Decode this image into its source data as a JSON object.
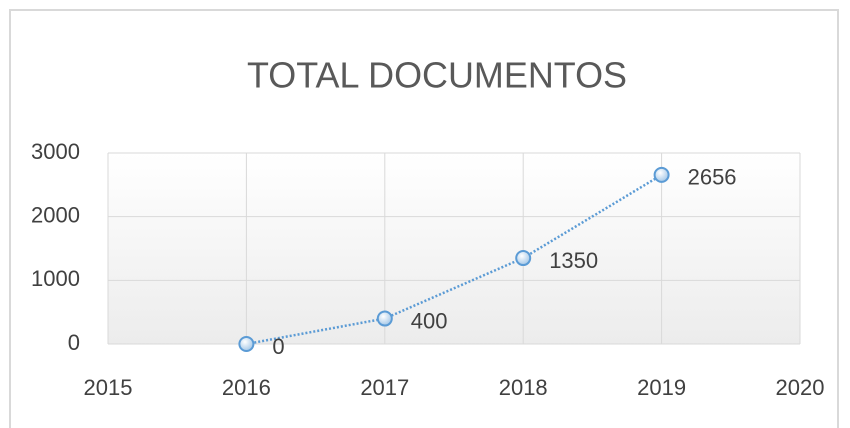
{
  "chart_data": {
    "type": "line",
    "title": "TOTAL DOCUMENTOS",
    "x": [
      2016,
      2017,
      2018,
      2019
    ],
    "series": [
      {
        "color": "#5b9bd5",
        "values": [
          0,
          400,
          1350,
          2656
        ]
      }
    ],
    "xlim": [
      2015,
      2020
    ],
    "xticks": [
      2015,
      2016,
      2017,
      2018,
      2019,
      2020
    ],
    "ylim": [
      0,
      3000
    ],
    "yticks": [
      0,
      1000,
      2000,
      3000
    ],
    "grid": true
  }
}
